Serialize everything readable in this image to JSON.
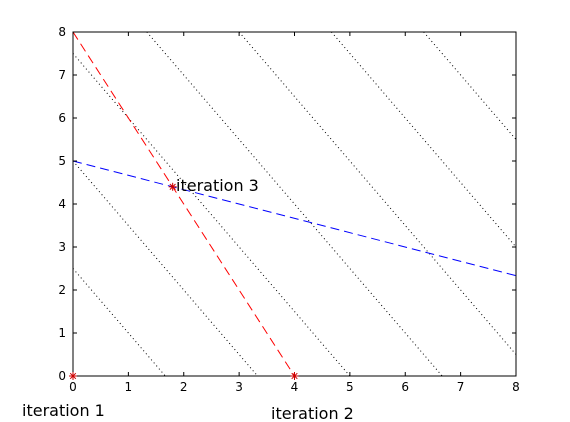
{
  "chart_data": {
    "type": "line",
    "title": "",
    "xlabel": "",
    "ylabel": "",
    "xlim": [
      0,
      8
    ],
    "ylim": [
      0,
      8
    ],
    "x_ticks": [
      "0",
      "1",
      "2",
      "3",
      "4",
      "5",
      "6",
      "7",
      "8"
    ],
    "y_ticks": [
      "0",
      "1",
      "2",
      "3",
      "4",
      "5",
      "6",
      "7",
      "8"
    ],
    "grid": false,
    "contours": [
      {
        "points": [
          [
            0,
            2.5
          ],
          [
            1.667,
            0
          ]
        ]
      },
      {
        "points": [
          [
            0,
            5.0
          ],
          [
            3.333,
            0
          ]
        ]
      },
      {
        "points": [
          [
            0,
            7.5
          ],
          [
            5.0,
            0
          ]
        ]
      },
      {
        "points": [
          [
            1.333,
            8
          ],
          [
            6.667,
            0
          ]
        ]
      },
      {
        "points": [
          [
            3.0,
            8
          ],
          [
            8,
            0.5
          ]
        ]
      },
      {
        "points": [
          [
            4.667,
            8
          ],
          [
            8,
            3.0
          ]
        ]
      },
      {
        "points": [
          [
            6.333,
            8
          ],
          [
            8,
            5.5
          ]
        ]
      }
    ],
    "series": [
      {
        "color": "#ff0000",
        "style": "dashed",
        "points": [
          [
            0,
            8
          ],
          [
            4,
            0
          ]
        ]
      },
      {
        "color": "#0000ff",
        "style": "dashed",
        "points": [
          [
            0,
            5
          ],
          [
            8,
            2.333
          ]
        ]
      }
    ],
    "markers": [
      {
        "x": 0,
        "y": 0,
        "color": "#cc0000"
      },
      {
        "x": 4,
        "y": 0,
        "color": "#cc0000"
      },
      {
        "x": 1.8,
        "y": 4.4,
        "color": "#cc0000"
      }
    ],
    "annotations": [
      {
        "text": "iteration 1",
        "x": 0,
        "y": 0
      },
      {
        "text": "iteration 2",
        "x": 4,
        "y": 0
      },
      {
        "text": "iteration 3",
        "x": 1.8,
        "y": 4.4
      }
    ]
  }
}
